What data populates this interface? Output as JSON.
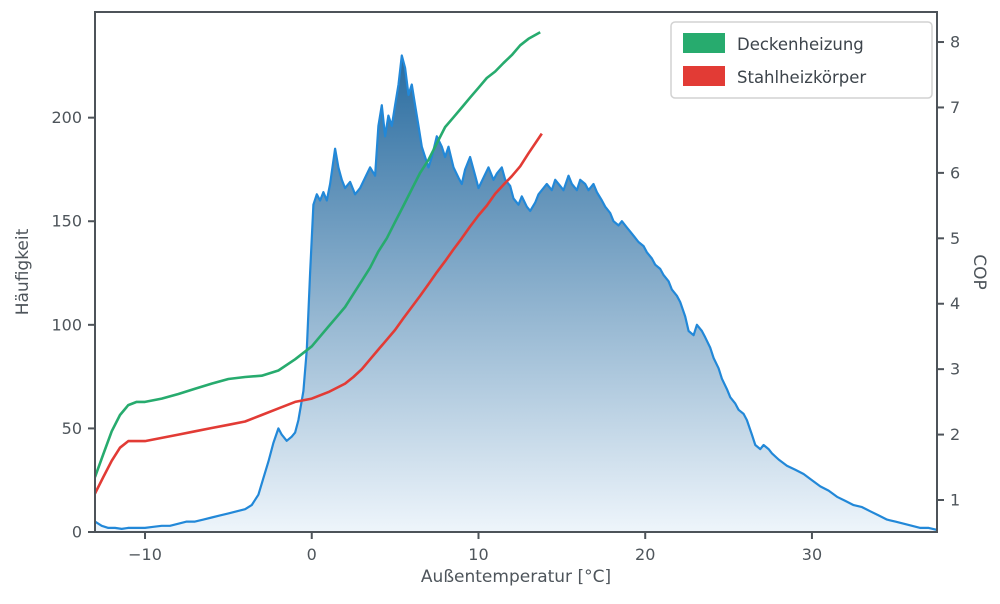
{
  "chart_data": {
    "type": "line",
    "title": "",
    "xlabel": "Außentemperatur [°C]",
    "ylabel_left": "Häufigkeit",
    "ylabel_right": "COP",
    "grid": false,
    "legend_position": "upper right",
    "xlim": [
      -13.0,
      37.5
    ],
    "ylim_left": [
      0,
      251
    ],
    "ylim_right": [
      0.511,
      8.459
    ],
    "x_ticks": [
      {
        "v": -10,
        "label": "−10"
      },
      {
        "v": 0,
        "label": "0"
      },
      {
        "v": 10,
        "label": "10"
      },
      {
        "v": 20,
        "label": "20"
      },
      {
        "v": 30,
        "label": "30"
      }
    ],
    "yleft_ticks": [
      {
        "v": 0,
        "label": "0"
      },
      {
        "v": 50,
        "label": "50"
      },
      {
        "v": 100,
        "label": "100"
      },
      {
        "v": 150,
        "label": "150"
      },
      {
        "v": 200,
        "label": "200"
      }
    ],
    "yright_ticks": [
      {
        "v": 1,
        "label": "1"
      },
      {
        "v": 2,
        "label": "2"
      },
      {
        "v": 3,
        "label": "3"
      },
      {
        "v": 4,
        "label": "4"
      },
      {
        "v": 5,
        "label": "5"
      },
      {
        "v": 6,
        "label": "6"
      },
      {
        "v": 7,
        "label": "7"
      },
      {
        "v": 8,
        "label": "8"
      }
    ],
    "series": [
      {
        "name": "Häufigkeit",
        "type": "area",
        "axis": "left",
        "color": "#2288d8",
        "points": [
          [
            -13,
            5
          ],
          [
            -12.6,
            3
          ],
          [
            -12.2,
            2
          ],
          [
            -11.8,
            2
          ],
          [
            -11.4,
            1.5
          ],
          [
            -11,
            2
          ],
          [
            -10.5,
            2
          ],
          [
            -10,
            2
          ],
          [
            -9.5,
            2.5
          ],
          [
            -9,
            3
          ],
          [
            -8.5,
            3
          ],
          [
            -8,
            4
          ],
          [
            -7.5,
            5
          ],
          [
            -7,
            5
          ],
          [
            -6.5,
            6
          ],
          [
            -6,
            7
          ],
          [
            -5.5,
            8
          ],
          [
            -5,
            9
          ],
          [
            -4.5,
            10
          ],
          [
            -4,
            11
          ],
          [
            -3.6,
            13
          ],
          [
            -3.2,
            18
          ],
          [
            -2.9,
            26
          ],
          [
            -2.6,
            34
          ],
          [
            -2.3,
            43
          ],
          [
            -2,
            50
          ],
          [
            -1.8,
            47
          ],
          [
            -1.5,
            44
          ],
          [
            -1.2,
            46
          ],
          [
            -1,
            48
          ],
          [
            -0.8,
            54
          ],
          [
            -0.5,
            68
          ],
          [
            -0.3,
            88
          ],
          [
            -0.1,
            125
          ],
          [
            0.1,
            158
          ],
          [
            0.3,
            163
          ],
          [
            0.5,
            160
          ],
          [
            0.7,
            164
          ],
          [
            0.9,
            160
          ],
          [
            1.1,
            168
          ],
          [
            1.4,
            185
          ],
          [
            1.6,
            176
          ],
          [
            1.8,
            170
          ],
          [
            2,
            166
          ],
          [
            2.3,
            169
          ],
          [
            2.6,
            163
          ],
          [
            2.9,
            166
          ],
          [
            3.2,
            171
          ],
          [
            3.5,
            176
          ],
          [
            3.8,
            172
          ],
          [
            4,
            196
          ],
          [
            4.2,
            206
          ],
          [
            4.4,
            191
          ],
          [
            4.6,
            201
          ],
          [
            4.8,
            196
          ],
          [
            5,
            206
          ],
          [
            5.2,
            216
          ],
          [
            5.4,
            230
          ],
          [
            5.6,
            224
          ],
          [
            5.8,
            211
          ],
          [
            6,
            216
          ],
          [
            6.2,
            206
          ],
          [
            6.4,
            196
          ],
          [
            6.6,
            186
          ],
          [
            6.8,
            181
          ],
          [
            7,
            176
          ],
          [
            7.2,
            181
          ],
          [
            7.5,
            191
          ],
          [
            7.8,
            186
          ],
          [
            8,
            181
          ],
          [
            8.2,
            186
          ],
          [
            8.5,
            176
          ],
          [
            8.8,
            171
          ],
          [
            9,
            168
          ],
          [
            9.2,
            175
          ],
          [
            9.5,
            181
          ],
          [
            9.8,
            172
          ],
          [
            10,
            166
          ],
          [
            10.3,
            171
          ],
          [
            10.6,
            176
          ],
          [
            10.9,
            170
          ],
          [
            11.1,
            173
          ],
          [
            11.4,
            176
          ],
          [
            11.6,
            170
          ],
          [
            11.9,
            167
          ],
          [
            12.1,
            161
          ],
          [
            12.4,
            158
          ],
          [
            12.6,
            162
          ],
          [
            12.9,
            157
          ],
          [
            13.1,
            155
          ],
          [
            13.4,
            159
          ],
          [
            13.6,
            163
          ],
          [
            13.9,
            166
          ],
          [
            14.1,
            168
          ],
          [
            14.4,
            165
          ],
          [
            14.6,
            170
          ],
          [
            14.9,
            167
          ],
          [
            15.1,
            165
          ],
          [
            15.4,
            172
          ],
          [
            15.6,
            168
          ],
          [
            15.9,
            165
          ],
          [
            16.1,
            170
          ],
          [
            16.4,
            168
          ],
          [
            16.6,
            165
          ],
          [
            16.9,
            168
          ],
          [
            17.1,
            164
          ],
          [
            17.4,
            160
          ],
          [
            17.6,
            157
          ],
          [
            17.9,
            154
          ],
          [
            18.1,
            150
          ],
          [
            18.4,
            148
          ],
          [
            18.6,
            150
          ],
          [
            18.9,
            147
          ],
          [
            19.1,
            145
          ],
          [
            19.4,
            142
          ],
          [
            19.6,
            140
          ],
          [
            19.9,
            138
          ],
          [
            20.1,
            135
          ],
          [
            20.4,
            132
          ],
          [
            20.6,
            129
          ],
          [
            20.9,
            127
          ],
          [
            21.1,
            124
          ],
          [
            21.4,
            121
          ],
          [
            21.6,
            117
          ],
          [
            21.9,
            114
          ],
          [
            22.1,
            111
          ],
          [
            22.4,
            104
          ],
          [
            22.6,
            97
          ],
          [
            22.9,
            95
          ],
          [
            23.1,
            100
          ],
          [
            23.4,
            97
          ],
          [
            23.6,
            94
          ],
          [
            23.9,
            89
          ],
          [
            24.1,
            84
          ],
          [
            24.4,
            79
          ],
          [
            24.6,
            74
          ],
          [
            24.9,
            69
          ],
          [
            25.1,
            65
          ],
          [
            25.4,
            62
          ],
          [
            25.6,
            59
          ],
          [
            25.9,
            57
          ],
          [
            26.1,
            54
          ],
          [
            26.4,
            47
          ],
          [
            26.6,
            42
          ],
          [
            26.9,
            40
          ],
          [
            27.1,
            42
          ],
          [
            27.4,
            40
          ],
          [
            27.6,
            38
          ],
          [
            28,
            35
          ],
          [
            28.5,
            32
          ],
          [
            29,
            30
          ],
          [
            29.5,
            28
          ],
          [
            30,
            25
          ],
          [
            30.5,
            22
          ],
          [
            31,
            20
          ],
          [
            31.5,
            17
          ],
          [
            32,
            15
          ],
          [
            32.5,
            13
          ],
          [
            33,
            12
          ],
          [
            33.5,
            10
          ],
          [
            34,
            8
          ],
          [
            34.5,
            6
          ],
          [
            35,
            5
          ],
          [
            35.5,
            4
          ],
          [
            36,
            3
          ],
          [
            36.5,
            2
          ],
          [
            37,
            2
          ],
          [
            37.5,
            1
          ]
        ]
      },
      {
        "name": "Deckenheizung",
        "type": "line",
        "axis": "right",
        "color": "#27ab6e",
        "points": [
          [
            -13,
            1.35
          ],
          [
            -12.5,
            1.7
          ],
          [
            -12,
            2.05
          ],
          [
            -11.5,
            2.3
          ],
          [
            -11,
            2.45
          ],
          [
            -10.5,
            2.5
          ],
          [
            -10,
            2.5
          ],
          [
            -9,
            2.55
          ],
          [
            -8,
            2.62
          ],
          [
            -7,
            2.7
          ],
          [
            -6,
            2.78
          ],
          [
            -5,
            2.85
          ],
          [
            -4,
            2.88
          ],
          [
            -3,
            2.9
          ],
          [
            -2,
            2.98
          ],
          [
            -1,
            3.15
          ],
          [
            0,
            3.35
          ],
          [
            0.5,
            3.5
          ],
          [
            1,
            3.65
          ],
          [
            1.5,
            3.8
          ],
          [
            2,
            3.95
          ],
          [
            2.5,
            4.15
          ],
          [
            3,
            4.35
          ],
          [
            3.5,
            4.55
          ],
          [
            4,
            4.8
          ],
          [
            4.5,
            5.0
          ],
          [
            5,
            5.25
          ],
          [
            5.5,
            5.5
          ],
          [
            6,
            5.75
          ],
          [
            6.5,
            6.0
          ],
          [
            7,
            6.2
          ],
          [
            7.5,
            6.45
          ],
          [
            8,
            6.7
          ],
          [
            8.5,
            6.85
          ],
          [
            9,
            7.0
          ],
          [
            9.5,
            7.15
          ],
          [
            10,
            7.3
          ],
          [
            10.5,
            7.45
          ],
          [
            11,
            7.55
          ],
          [
            11.5,
            7.68
          ],
          [
            12,
            7.8
          ],
          [
            12.5,
            7.95
          ],
          [
            13,
            8.05
          ],
          [
            13.7,
            8.15
          ]
        ]
      },
      {
        "name": "Stahlheizkörper",
        "type": "line",
        "axis": "right",
        "color": "#e23b35",
        "points": [
          [
            -13,
            1.1
          ],
          [
            -12.5,
            1.35
          ],
          [
            -12,
            1.6
          ],
          [
            -11.5,
            1.8
          ],
          [
            -11,
            1.9
          ],
          [
            -10.5,
            1.9
          ],
          [
            -10,
            1.9
          ],
          [
            -9,
            1.95
          ],
          [
            -8,
            2.0
          ],
          [
            -7,
            2.05
          ],
          [
            -6,
            2.1
          ],
          [
            -5,
            2.15
          ],
          [
            -4,
            2.2
          ],
          [
            -3,
            2.3
          ],
          [
            -2,
            2.4
          ],
          [
            -1,
            2.5
          ],
          [
            0,
            2.55
          ],
          [
            1,
            2.65
          ],
          [
            2,
            2.78
          ],
          [
            2.5,
            2.88
          ],
          [
            3,
            3.0
          ],
          [
            3.5,
            3.15
          ],
          [
            4,
            3.3
          ],
          [
            4.5,
            3.45
          ],
          [
            5,
            3.6
          ],
          [
            5.5,
            3.78
          ],
          [
            6,
            3.95
          ],
          [
            6.5,
            4.12
          ],
          [
            7,
            4.3
          ],
          [
            7.5,
            4.48
          ],
          [
            8,
            4.65
          ],
          [
            8.5,
            4.83
          ],
          [
            9,
            5.0
          ],
          [
            9.5,
            5.18
          ],
          [
            10,
            5.35
          ],
          [
            10.5,
            5.5
          ],
          [
            11,
            5.68
          ],
          [
            11.5,
            5.82
          ],
          [
            12,
            5.95
          ],
          [
            12.5,
            6.1
          ],
          [
            13,
            6.3
          ],
          [
            13.8,
            6.6
          ]
        ]
      }
    ]
  },
  "legend": {
    "items": [
      {
        "label": "Deckenheizung",
        "color": "#27ab6e"
      },
      {
        "label": "Stahlheizkörper",
        "color": "#e23b35"
      }
    ]
  },
  "colors": {
    "axis": "#4d5359",
    "text": "#4e555b",
    "hist_line": "#2288d8",
    "hist_gradient_top": "#175f97",
    "hist_gradient_bottom": "#eef5fb",
    "legend_border": "#d2d2d2",
    "legend_bg": "#ffffff"
  }
}
